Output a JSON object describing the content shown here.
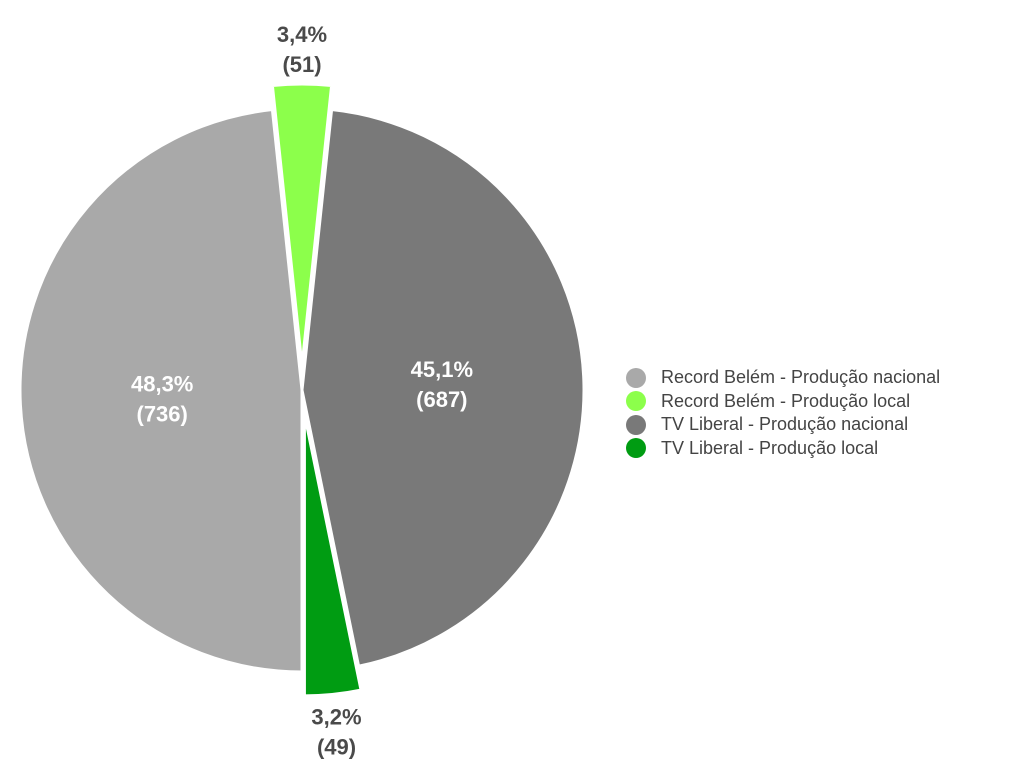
{
  "chart_data": {
    "type": "pie",
    "title": "",
    "start_angle_deg": 180,
    "slices": [
      {
        "label": "Record Belém - Produção nacional",
        "value": 736,
        "percent": "48,3%",
        "color": "#a9a9a9",
        "exploded": false,
        "label_position": "inside",
        "display_value": "(736)"
      },
      {
        "label": "Record Belém - Produção local",
        "value": 51,
        "percent": "3,4%",
        "color": "#8cff4b",
        "exploded": true,
        "label_position": "outside",
        "display_value": "(51)"
      },
      {
        "label": "TV Liberal - Produção nacional",
        "value": 687,
        "percent": "45,1%",
        "color": "#797979",
        "exploded": false,
        "label_position": "inside",
        "display_value": "(687)"
      },
      {
        "label": "TV Liberal - Produção local",
        "value": 49,
        "percent": "3,2%",
        "color": "#009c12",
        "exploded": true,
        "label_position": "outside",
        "display_value": "(49)"
      }
    ],
    "legend_position": "right"
  }
}
